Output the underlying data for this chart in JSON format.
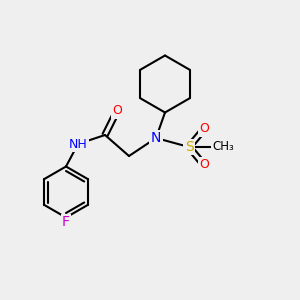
{
  "background_color": "#efefef",
  "bond_color": "#000000",
  "bond_width": 1.5,
  "atom_colors": {
    "N": "#0000ff",
    "O": "#ff0000",
    "S": "#ccaa00",
    "F": "#cc00cc",
    "H": "#888888",
    "C": "#000000"
  },
  "font_size": 9,
  "fig_size": [
    3.0,
    3.0
  ],
  "dpi": 100
}
